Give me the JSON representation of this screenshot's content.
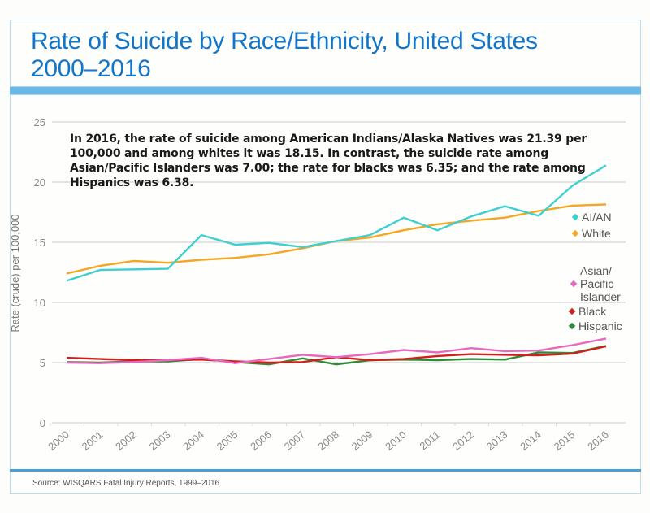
{
  "header": {
    "title_line1": "Rate of Suicide by Race/Ethnicity, United States",
    "title_line2": "2000–2016"
  },
  "annotation": "In 2016, the rate of suicide among American Indians/Alaska Natives was 21.39 per 100,000 and among whites it was 18.15. In contrast, the suicide rate among Asian/Pacific Islanders was 7.00; the rate for blacks was 6.35; and the rate among Hispanics was 6.38.",
  "footer": {
    "source": "Source: WISQARS Fatal Injury Reports, 1999–2016"
  },
  "colors": {
    "title": "#1275c9",
    "accent_bar": "#6ab8e8",
    "grid": "#dcdcdc"
  },
  "chart_data": {
    "type": "line",
    "title": "Rate of Suicide by Race/Ethnicity, United States 2000–2016",
    "xlabel": "",
    "ylabel": "Rate (crude) per 100,000",
    "ylim": [
      0,
      25
    ],
    "yticks": [
      0,
      5,
      10,
      15,
      20,
      25
    ],
    "grid": true,
    "legend_position": "right",
    "x": [
      "2000",
      "2001",
      "2002",
      "2003",
      "2004",
      "2005",
      "2006",
      "2007",
      "2008",
      "2009",
      "2010",
      "2011",
      "2012",
      "2013",
      "2014",
      "2015",
      "2016"
    ],
    "series": [
      {
        "name": "AI/AN",
        "label_lines": [
          "AI/AN"
        ],
        "color": "#3ecfcf",
        "values": [
          11.8,
          12.7,
          12.75,
          12.8,
          15.6,
          14.8,
          14.95,
          14.6,
          15.1,
          15.6,
          17.05,
          16.0,
          17.15,
          18.0,
          17.2,
          19.7,
          21.39
        ]
      },
      {
        "name": "White",
        "label_lines": [
          "White"
        ],
        "color": "#f5a623",
        "values": [
          12.4,
          13.05,
          13.45,
          13.3,
          13.55,
          13.7,
          14.0,
          14.5,
          15.1,
          15.4,
          16.0,
          16.5,
          16.8,
          17.05,
          17.6,
          18.05,
          18.15
        ]
      },
      {
        "name": "Asian/Pacific Islander",
        "label_lines": [
          "Asian/",
          "Pacific",
          "Islander"
        ],
        "color": "#e868c0",
        "values": [
          5.0,
          4.95,
          5.05,
          5.2,
          5.4,
          4.95,
          5.3,
          5.65,
          5.45,
          5.7,
          6.05,
          5.85,
          6.2,
          5.95,
          6.0,
          6.45,
          7.0
        ]
      },
      {
        "name": "Black",
        "label_lines": [
          "Black"
        ],
        "color": "#d0201c",
        "values": [
          5.4,
          5.3,
          5.2,
          5.2,
          5.25,
          5.1,
          5.0,
          5.05,
          5.45,
          5.2,
          5.3,
          5.55,
          5.7,
          5.65,
          5.6,
          5.75,
          6.35
        ]
      },
      {
        "name": "Hispanic",
        "label_lines": [
          "Hispanic"
        ],
        "color": "#2e8b3a",
        "values": [
          5.05,
          5.0,
          5.1,
          5.1,
          5.3,
          5.05,
          4.85,
          5.35,
          4.85,
          5.2,
          5.25,
          5.2,
          5.3,
          5.25,
          5.85,
          5.8,
          6.38
        ]
      }
    ]
  }
}
